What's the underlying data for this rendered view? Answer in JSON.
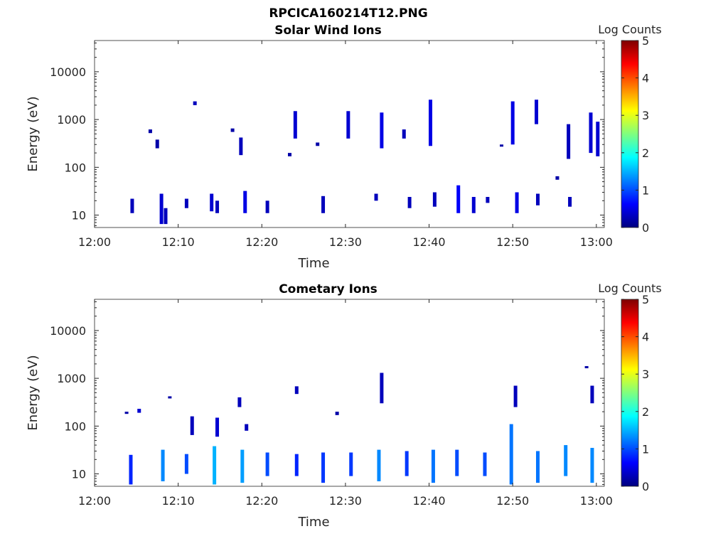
{
  "figure_title": "RPCICA160214T12.PNG",
  "colormap": [
    "#00007f",
    "#0000ff",
    "#007fff",
    "#00ffff",
    "#7fff7f",
    "#ffff00",
    "#ff7f00",
    "#ff0000",
    "#7f0000"
  ],
  "chart_data": [
    {
      "type": "heatmap",
      "title": "Solar Wind Ions",
      "xlabel": "Time",
      "ylabel": "Energy (eV)",
      "x_range": [
        "12:00",
        "13:00"
      ],
      "x_ticks": [
        "12:00",
        "12:10",
        "12:20",
        "12:30",
        "12:40",
        "12:50",
        "13:00"
      ],
      "y_scale": "log",
      "y_range": [
        5.5,
        45000
      ],
      "y_ticks": [
        "10",
        "100",
        "1000",
        "10000"
      ],
      "colorbar": {
        "label": "Log Counts",
        "range": [
          0,
          5
        ],
        "ticks": [
          "0",
          "1",
          "2",
          "3",
          "4",
          "5"
        ]
      },
      "points": [
        {
          "t": "12:04:30",
          "e_lo": 11,
          "e_hi": 22,
          "c": 0.3
        },
        {
          "t": "12:08:00",
          "e_lo": 6.5,
          "e_hi": 28,
          "c": 0.4
        },
        {
          "t": "12:08:30",
          "e_lo": 6.5,
          "e_hi": 14,
          "c": 0.3
        },
        {
          "t": "12:06:40",
          "e_lo": 520,
          "e_hi": 620,
          "c": 0.2
        },
        {
          "t": "12:07:30",
          "e_lo": 250,
          "e_hi": 380,
          "c": 0.2
        },
        {
          "t": "12:11:00",
          "e_lo": 14,
          "e_hi": 22,
          "c": 0.3
        },
        {
          "t": "12:12:00",
          "e_lo": 2000,
          "e_hi": 2400,
          "c": 0.3
        },
        {
          "t": "12:14:00",
          "e_lo": 12,
          "e_hi": 28,
          "c": 0.4
        },
        {
          "t": "12:14:40",
          "e_lo": 11,
          "e_hi": 20,
          "c": 0.3
        },
        {
          "t": "12:16:30",
          "e_lo": 550,
          "e_hi": 650,
          "c": 0.2
        },
        {
          "t": "12:17:30",
          "e_lo": 180,
          "e_hi": 420,
          "c": 0.3
        },
        {
          "t": "12:18:00",
          "e_lo": 11,
          "e_hi": 32,
          "c": 0.5
        },
        {
          "t": "12:20:40",
          "e_lo": 11,
          "e_hi": 20,
          "c": 0.3
        },
        {
          "t": "12:23:20",
          "e_lo": 170,
          "e_hi": 200,
          "c": 0.2
        },
        {
          "t": "12:24:00",
          "e_lo": 400,
          "e_hi": 1500,
          "c": 0.4
        },
        {
          "t": "12:26:40",
          "e_lo": 280,
          "e_hi": 330,
          "c": 0.2
        },
        {
          "t": "12:27:20",
          "e_lo": 11,
          "e_hi": 25,
          "c": 0.3
        },
        {
          "t": "12:30:20",
          "e_lo": 400,
          "e_hi": 1500,
          "c": 0.4
        },
        {
          "t": "12:33:40",
          "e_lo": 20,
          "e_hi": 28,
          "c": 0.3
        },
        {
          "t": "12:34:20",
          "e_lo": 250,
          "e_hi": 1400,
          "c": 0.5
        },
        {
          "t": "12:37:00",
          "e_lo": 400,
          "e_hi": 620,
          "c": 0.3
        },
        {
          "t": "12:37:40",
          "e_lo": 14,
          "e_hi": 24,
          "c": 0.3
        },
        {
          "t": "12:40:10",
          "e_lo": 280,
          "e_hi": 2600,
          "c": 0.5
        },
        {
          "t": "12:40:40",
          "e_lo": 15,
          "e_hi": 30,
          "c": 0.3
        },
        {
          "t": "12:43:30",
          "e_lo": 11,
          "e_hi": 42,
          "c": 0.6
        },
        {
          "t": "12:45:20",
          "e_lo": 11,
          "e_hi": 24,
          "c": 0.4
        },
        {
          "t": "12:47:00",
          "e_lo": 18,
          "e_hi": 24,
          "c": 0.3
        },
        {
          "t": "12:48:40",
          "e_lo": 280,
          "e_hi": 300,
          "c": 0.2
        },
        {
          "t": "12:50:00",
          "e_lo": 300,
          "e_hi": 2400,
          "c": 0.5
        },
        {
          "t": "12:50:30",
          "e_lo": 11,
          "e_hi": 30,
          "c": 0.5
        },
        {
          "t": "12:52:50",
          "e_lo": 800,
          "e_hi": 2600,
          "c": 0.4
        },
        {
          "t": "12:53:00",
          "e_lo": 16,
          "e_hi": 28,
          "c": 0.3
        },
        {
          "t": "12:55:20",
          "e_lo": 55,
          "e_hi": 65,
          "c": 0.2
        },
        {
          "t": "12:56:40",
          "e_lo": 150,
          "e_hi": 800,
          "c": 0.3
        },
        {
          "t": "12:56:50",
          "e_lo": 15,
          "e_hi": 24,
          "c": 0.3
        },
        {
          "t": "12:59:20",
          "e_lo": 200,
          "e_hi": 1400,
          "c": 0.4
        },
        {
          "t": "13:00:10",
          "e_lo": 170,
          "e_hi": 900,
          "c": 0.4
        }
      ]
    },
    {
      "type": "heatmap",
      "title": "Cometary Ions",
      "xlabel": "Time",
      "ylabel": "Energy (eV)",
      "x_range": [
        "12:00",
        "13:00"
      ],
      "x_ticks": [
        "12:00",
        "12:10",
        "12:20",
        "12:30",
        "12:40",
        "12:50",
        "13:00"
      ],
      "y_scale": "log",
      "y_range": [
        5.5,
        45000
      ],
      "y_ticks": [
        "10",
        "100",
        "1000",
        "10000"
      ],
      "colorbar": {
        "label": "Log Counts",
        "range": [
          0,
          5
        ],
        "ticks": [
          "0",
          "1",
          "2",
          "3",
          "4",
          "5"
        ]
      },
      "points": [
        {
          "t": "12:04:20",
          "e_lo": 6,
          "e_hi": 25,
          "c": 0.8
        },
        {
          "t": "12:03:50",
          "e_lo": 180,
          "e_hi": 200,
          "c": 0.2
        },
        {
          "t": "12:05:20",
          "e_lo": 190,
          "e_hi": 230,
          "c": 0.4
        },
        {
          "t": "12:08:10",
          "e_lo": 7,
          "e_hi": 32,
          "c": 1.3
        },
        {
          "t": "12:09:00",
          "e_lo": 380,
          "e_hi": 420,
          "c": 0.2
        },
        {
          "t": "12:11:00",
          "e_lo": 10,
          "e_hi": 26,
          "c": 1.0
        },
        {
          "t": "12:11:40",
          "e_lo": 65,
          "e_hi": 160,
          "c": 0.3
        },
        {
          "t": "12:14:20",
          "e_lo": 6,
          "e_hi": 38,
          "c": 1.5
        },
        {
          "t": "12:14:40",
          "e_lo": 60,
          "e_hi": 150,
          "c": 0.4
        },
        {
          "t": "12:17:40",
          "e_lo": 6.5,
          "e_hi": 32,
          "c": 1.4
        },
        {
          "t": "12:17:20",
          "e_lo": 250,
          "e_hi": 400,
          "c": 0.3
        },
        {
          "t": "12:18:10",
          "e_lo": 80,
          "e_hi": 110,
          "c": 0.3
        },
        {
          "t": "12:20:40",
          "e_lo": 9,
          "e_hi": 28,
          "c": 1.0
        },
        {
          "t": "12:24:10",
          "e_lo": 9,
          "e_hi": 26,
          "c": 0.8
        },
        {
          "t": "12:24:10",
          "e_lo": 470,
          "e_hi": 680,
          "c": 0.3
        },
        {
          "t": "12:27:20",
          "e_lo": 6.5,
          "e_hi": 28,
          "c": 0.9
        },
        {
          "t": "12:29:00",
          "e_lo": 170,
          "e_hi": 200,
          "c": 0.2
        },
        {
          "t": "12:30:40",
          "e_lo": 9,
          "e_hi": 28,
          "c": 0.9
        },
        {
          "t": "12:34:00",
          "e_lo": 7,
          "e_hi": 32,
          "c": 1.3
        },
        {
          "t": "12:34:20",
          "e_lo": 300,
          "e_hi": 1300,
          "c": 0.3
        },
        {
          "t": "12:37:20",
          "e_lo": 9,
          "e_hi": 30,
          "c": 0.9
        },
        {
          "t": "12:40:30",
          "e_lo": 6.5,
          "e_hi": 32,
          "c": 1.2
        },
        {
          "t": "12:43:20",
          "e_lo": 9,
          "e_hi": 32,
          "c": 1.0
        },
        {
          "t": "12:46:40",
          "e_lo": 9,
          "e_hi": 28,
          "c": 1.0
        },
        {
          "t": "12:49:50",
          "e_lo": 6,
          "e_hi": 110,
          "c": 1.2
        },
        {
          "t": "12:50:20",
          "e_lo": 250,
          "e_hi": 700,
          "c": 0.3
        },
        {
          "t": "12:53:00",
          "e_lo": 6.5,
          "e_hi": 30,
          "c": 1.2
        },
        {
          "t": "12:56:20",
          "e_lo": 9,
          "e_hi": 40,
          "c": 1.3
        },
        {
          "t": "12:59:30",
          "e_lo": 6.5,
          "e_hi": 35,
          "c": 1.3
        },
        {
          "t": "12:59:30",
          "e_lo": 300,
          "e_hi": 700,
          "c": 0.3
        },
        {
          "t": "12:58:50",
          "e_lo": 1700,
          "e_hi": 1800,
          "c": 0.2
        }
      ]
    }
  ]
}
